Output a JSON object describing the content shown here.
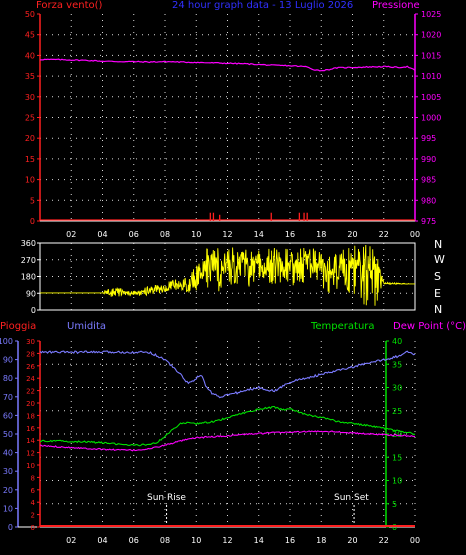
{
  "colors": {
    "wind_speed": "#ff2020",
    "pressure": "#ff00ff",
    "direction": "#ffff00",
    "rain": "#ff2020",
    "humidity": "#7b7bff",
    "temperature": "#00e000",
    "dew_point": "#ff00ff",
    "axis": "#ffffff",
    "grid": "#ffffff"
  },
  "header": {
    "left_label": "Forza vento()",
    "title": "24 hour graph data - 13 Luglio 2026",
    "right_label": "Pressione"
  },
  "direction_panel": {
    "compass_labels": [
      "N",
      "W",
      "S",
      "E",
      "N"
    ]
  },
  "bottom_header": {
    "rain_label": "Pioggia",
    "humidity_label": "Umidita",
    "temperature_label": "Temperatura",
    "dew_label": "Dew Point (°C)"
  },
  "sun_events": {
    "sunrise_label": "Sun Rise",
    "sunset_label": "Sun Set"
  },
  "chart_data": [
    {
      "type": "line",
      "name": "wind-pressure",
      "x_ticks": [
        "02",
        "04",
        "06",
        "08",
        "10",
        "12",
        "14",
        "16",
        "18",
        "20",
        "22",
        "00"
      ],
      "y_left_ticks": [
        0,
        5,
        10,
        15,
        20,
        25,
        30,
        35,
        40,
        45,
        50
      ],
      "y_left_lim": [
        0,
        50
      ],
      "y_right_ticks": [
        975,
        980,
        985,
        990,
        995,
        1000,
        1005,
        1010,
        1015,
        1020,
        1025
      ],
      "y_right_lim": [
        975,
        1025
      ],
      "grid": true,
      "series": [
        {
          "axis": "right",
          "x": [
            0,
            1,
            2,
            3,
            4,
            5,
            6,
            7,
            8,
            9,
            10,
            11,
            12,
            13,
            14,
            15,
            16,
            17,
            17.5,
            18,
            18.5,
            19,
            20,
            21,
            22,
            23,
            23.5,
            24
          ],
          "y": [
            1014,
            1014,
            1013.9,
            1013.8,
            1013.6,
            1013.5,
            1013.5,
            1013.4,
            1013.5,
            1013.4,
            1013.3,
            1013.2,
            1013.1,
            1013,
            1012.8,
            1012.6,
            1012.5,
            1012.3,
            1011.6,
            1011.3,
            1011.6,
            1012,
            1012.1,
            1012.2,
            1012.3,
            1012.1,
            1012.3,
            1011.4
          ]
        },
        {
          "axis": "left",
          "spikes_x": [
            10.9,
            11.1,
            11.5,
            14.8,
            16.6,
            16.9,
            17.1
          ],
          "spikes_y": [
            2,
            2,
            1.5,
            2,
            2,
            2,
            2
          ]
        }
      ]
    },
    {
      "type": "scatter",
      "name": "wind-direction",
      "y_ticks": [
        0,
        90,
        180,
        270,
        360
      ],
      "ylim": [
        0,
        360
      ],
      "grid": true,
      "x": [
        0,
        1,
        2,
        3,
        4,
        4.5,
        5,
        5.5,
        6,
        7,
        7.5,
        8,
        8.5,
        9,
        9.5,
        10,
        10.5,
        11,
        11.5,
        12,
        12.5,
        13,
        13.5,
        14,
        14.5,
        15,
        15.5,
        16,
        16.5,
        17,
        17.5,
        18,
        18.5,
        19,
        19.5,
        20,
        20.5,
        21,
        21.5,
        22,
        24
      ],
      "y": [
        92,
        92,
        92,
        92,
        92,
        80,
        110,
        95,
        90,
        100,
        115,
        105,
        135,
        120,
        115,
        150,
        230,
        280,
        210,
        300,
        200,
        280,
        220,
        260,
        240,
        275,
        215,
        250,
        235,
        270,
        240,
        255,
        230,
        220,
        200,
        260,
        190,
        240,
        250,
        140,
        140
      ],
      "min_y": [
        92,
        92,
        92,
        92,
        92,
        70,
        70,
        75,
        75,
        80,
        85,
        100,
        105,
        110,
        100,
        100,
        110,
        130,
        95,
        160,
        110,
        140,
        120,
        150,
        130,
        140,
        110,
        130,
        120,
        150,
        160,
        120,
        90,
        100,
        40,
        70,
        0,
        20,
        0,
        140,
        140
      ],
      "max_y": [
        92,
        92,
        92,
        92,
        92,
        130,
        120,
        115,
        110,
        130,
        140,
        130,
        175,
        155,
        190,
        280,
        330,
        350,
        360,
        345,
        355,
        340,
        345,
        350,
        345,
        355,
        340,
        330,
        340,
        350,
        335,
        330,
        320,
        300,
        350,
        345,
        360,
        355,
        360,
        150,
        140
      ]
    },
    {
      "type": "line",
      "name": "rain-humidity-temperature-dewpoint",
      "x_ticks": [
        "02",
        "04",
        "06",
        "08",
        "10",
        "12",
        "14",
        "16",
        "18",
        "20",
        "22",
        "00"
      ],
      "y_rain_ticks": [
        0,
        10,
        20,
        30,
        40,
        50,
        60,
        70,
        80,
        90,
        100
      ],
      "y_rain_lim": [
        0,
        100
      ],
      "y_humidity_ticks": [
        0,
        2,
        4,
        6,
        8,
        10,
        12,
        14,
        16,
        18,
        20,
        22,
        24,
        26,
        28,
        30
      ],
      "y_humidity_lim": [
        0,
        30
      ],
      "y_temp_ticks": [
        0,
        5,
        10,
        15,
        20,
        25,
        30,
        35,
        40
      ],
      "y_temp_lim": [
        0,
        40
      ],
      "grid": true,
      "series": [
        {
          "name": "Umidita",
          "axis": "rain",
          "x": [
            0,
            2,
            4,
            6,
            7,
            8,
            8.5,
            9,
            9.5,
            10,
            10.3,
            10.6,
            11,
            11.5,
            12,
            13,
            14,
            15,
            16,
            17,
            18,
            19,
            20,
            21,
            22,
            23,
            23.5,
            24
          ],
          "y": [
            94,
            94,
            94,
            94,
            94,
            90,
            86,
            82,
            77,
            80,
            82,
            76,
            72,
            70,
            71,
            73,
            75,
            73,
            78,
            80,
            82,
            84,
            86,
            88,
            90,
            92,
            94,
            93
          ]
        },
        {
          "name": "Temperatura",
          "axis": "temp",
          "x": [
            0,
            1,
            2,
            3,
            4,
            5,
            6,
            7,
            7.5,
            8,
            8.5,
            9,
            9.5,
            10,
            11,
            12,
            13,
            14,
            14.5,
            15,
            15.5,
            16,
            16.5,
            17,
            18,
            19,
            20,
            21,
            22,
            23,
            24
          ],
          "y": [
            18.5,
            18.5,
            18.4,
            18.3,
            18.1,
            17.8,
            17.6,
            17.7,
            18.2,
            19.5,
            21,
            22.2,
            22.5,
            22.2,
            22.6,
            23.5,
            24.5,
            25.3,
            25.6,
            25.8,
            25.2,
            25.4,
            24.8,
            24.2,
            23.6,
            22.7,
            22.3,
            21.8,
            21.2,
            20.6,
            20
          ]
        },
        {
          "name": "Dew Point",
          "axis": "temp",
          "x": [
            0,
            1,
            2,
            3,
            4,
            5,
            6,
            7,
            8,
            9,
            10,
            11,
            12,
            13,
            14,
            15,
            16,
            17,
            18,
            19,
            20,
            21,
            22,
            23,
            24
          ],
          "y": [
            17.5,
            17.3,
            17.1,
            16.9,
            16.7,
            16.6,
            16.5,
            16.8,
            17.6,
            18.5,
            19.2,
            19.4,
            19.6,
            19.9,
            20.1,
            20.3,
            20.4,
            20.5,
            20.6,
            20.5,
            20.2,
            20,
            19.9,
            19.7,
            19.5
          ]
        },
        {
          "name": "Pioggia",
          "axis": "rain",
          "x": [
            0,
            24
          ],
          "y": [
            0,
            0
          ]
        }
      ],
      "markers": {
        "sunrise_x": 8.1,
        "sunset_x": 20.1
      }
    }
  ]
}
